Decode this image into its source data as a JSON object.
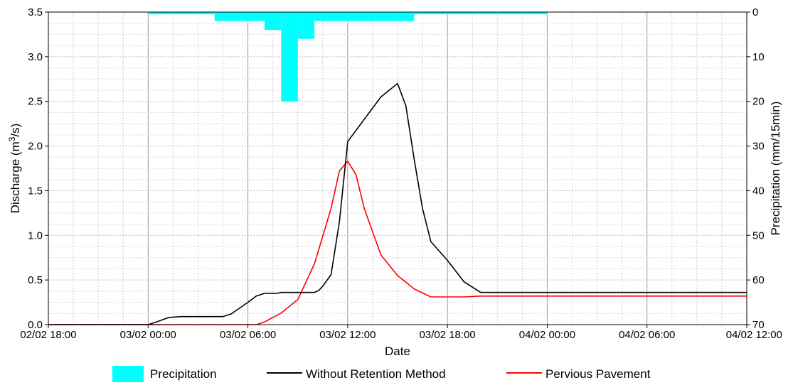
{
  "chart_data": {
    "type": "line",
    "title": "",
    "xlabel": "Date",
    "ylabel": "Discharge (m³/s)",
    "ylabel_parts": [
      "Discharge (m",
      "3",
      "/s)"
    ],
    "y2label": "Precipitation (mm/15min)",
    "x_range_hours": [
      0,
      42
    ],
    "x_tick_hours": [
      0,
      6,
      12,
      18,
      24,
      30,
      36,
      42
    ],
    "x_tick_labels": [
      "02/02 18:00",
      "03/02 00:00",
      "03/02 06:00",
      "03/02 12:00",
      "03/02 18:00",
      "04/02 00:00",
      "04/02 06:00",
      "04/02 12:00"
    ],
    "ylim": [
      0,
      3.5
    ],
    "y_ticks": [
      "0.0",
      "0.5",
      "1.0",
      "1.5",
      "2.0",
      "2.5",
      "3.0",
      "3.5"
    ],
    "y2lim": [
      0,
      70
    ],
    "y2_inverted": true,
    "y2_ticks": [
      "0",
      "10",
      "20",
      "30",
      "40",
      "50",
      "60",
      "70"
    ],
    "grid": true,
    "legend_position": "bottom",
    "precipitation": {
      "name": "Precipitation",
      "color": "#00ffff",
      "bars": [
        {
          "start": 6.0,
          "end": 10.0,
          "value": 0.5
        },
        {
          "start": 10.0,
          "end": 13.0,
          "value": 2.0
        },
        {
          "start": 13.0,
          "end": 14.0,
          "value": 4.0
        },
        {
          "start": 14.0,
          "end": 15.0,
          "value": 20.0
        },
        {
          "start": 15.0,
          "end": 16.0,
          "value": 6.0
        },
        {
          "start": 16.0,
          "end": 22.0,
          "value": 2.0
        },
        {
          "start": 22.0,
          "end": 30.0,
          "value": 0.5
        }
      ]
    },
    "series": [
      {
        "name": "Without Retention Method",
        "color": "#000000",
        "x": [
          0,
          6.0,
          6.5,
          7.25,
          8.0,
          9.0,
          10.0,
          10.5,
          11.0,
          12.0,
          12.5,
          13.0,
          13.5,
          13.75,
          14.0,
          14.25,
          14.5,
          14.75,
          15.0,
          15.25,
          15.5,
          15.75,
          16.0,
          16.25,
          16.5,
          17.0,
          17.5,
          18.0,
          20.0,
          21.0,
          21.5,
          22.0,
          22.5,
          23.0,
          24.0,
          25.0,
          26.0,
          27.0,
          28.0,
          29.0,
          29.5,
          30.0,
          42.0
        ],
        "y": [
          0,
          0,
          0.03,
          0.08,
          0.09,
          0.09,
          0.09,
          0.09,
          0.12,
          0.25,
          0.32,
          0.35,
          0.35,
          0.35,
          0.36,
          0.36,
          0.36,
          0.36,
          0.36,
          0.36,
          0.36,
          0.36,
          0.36,
          0.38,
          0.43,
          0.56,
          1.15,
          2.05,
          2.55,
          2.7,
          2.45,
          1.85,
          1.3,
          0.93,
          0.72,
          0.48,
          0.36,
          0.36,
          0.36,
          0.36,
          0.36,
          0.36,
          0.36
        ]
      },
      {
        "name": "Pervious Pavement",
        "color": "#ff0000",
        "x": [
          0,
          12.5,
          13.0,
          14.0,
          15.0,
          16.0,
          17.0,
          17.5,
          18.0,
          18.5,
          19.0,
          20.0,
          21.0,
          22.0,
          23.0,
          24.0,
          25.0,
          26.0,
          27.0,
          28.0,
          30.0,
          42.0
        ],
        "y": [
          0,
          0,
          0.03,
          0.13,
          0.28,
          0.68,
          1.3,
          1.72,
          1.83,
          1.68,
          1.3,
          0.78,
          0.55,
          0.4,
          0.31,
          0.31,
          0.31,
          0.32,
          0.32,
          0.32,
          0.32,
          0.32
        ]
      }
    ],
    "legend": [
      "Precipitation",
      "Without Retention Method",
      "Pervious Pavement"
    ]
  }
}
